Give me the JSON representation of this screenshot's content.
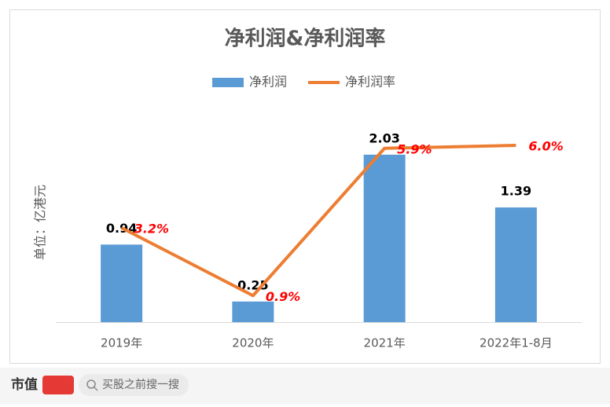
{
  "chart_data": {
    "type": "bar-line",
    "title": "净利润&净利润率",
    "y_label": "单位：亿港元",
    "categories": [
      "2019年",
      "2020年",
      "2021年",
      "2022年1-8月"
    ],
    "series": [
      {
        "name": "净利润",
        "color": "#5b9bd5",
        "type": "bar",
        "values": [
          0.94,
          0.25,
          2.03,
          1.39
        ]
      },
      {
        "name": "净利润率",
        "color": "#ed7d31",
        "type": "line",
        "axis": "y2",
        "values": [
          3.2,
          0.9,
          5.9,
          6.0
        ],
        "value_labels": [
          "3.2%",
          "0.9%",
          "5.9%",
          "6.0%"
        ]
      }
    ],
    "ylim": [
      0,
      2.5
    ],
    "y2lim": [
      0,
      7
    ],
    "legend": "top"
  },
  "footer": {
    "brand": "市值",
    "search": "买股之前搜一搜"
  }
}
